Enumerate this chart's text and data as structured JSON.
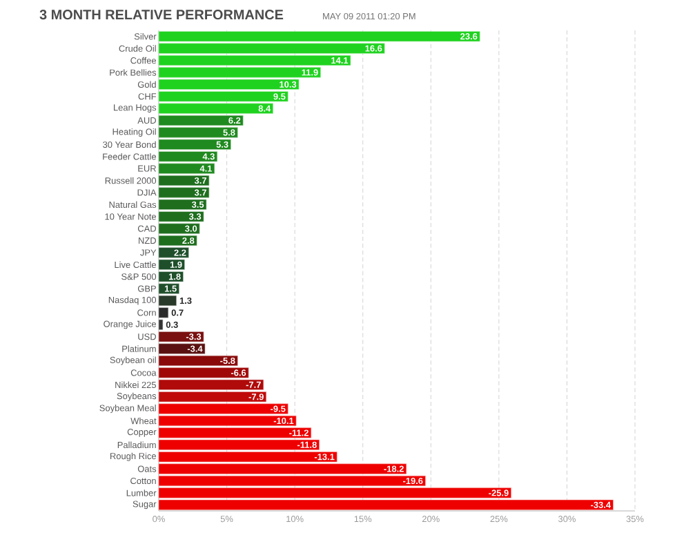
{
  "chart_data": {
    "type": "bar",
    "orientation": "horizontal",
    "title": "3 MONTH RELATIVE PERFORMANCE",
    "subtitle": "MAY 09 2011 01:20 PM",
    "categories": [
      "Silver",
      "Crude Oil",
      "Coffee",
      "Pork Bellies",
      "Gold",
      "CHF",
      "Lean Hogs",
      "AUD",
      "Heating Oil",
      "30 Year Bond",
      "Feeder Cattle",
      "EUR",
      "Russell 2000",
      "DJIA",
      "Natural Gas",
      "10 Year Note",
      "CAD",
      "NZD",
      "JPY",
      "Live Cattle",
      "S&P 500",
      "GBP",
      "Nasdaq 100",
      "Corn",
      "Orange Juice",
      "USD",
      "Platinum",
      "Soybean oil",
      "Cocoa",
      "Nikkei 225",
      "Soybeans",
      "Soybean Meal",
      "Wheat",
      "Copper",
      "Palladium",
      "Rough Rice",
      "Oats",
      "Cotton",
      "Lumber",
      "Sugar"
    ],
    "values": [
      23.6,
      16.6,
      14.1,
      11.9,
      10.3,
      9.5,
      8.4,
      6.2,
      5.8,
      5.3,
      4.3,
      4.1,
      3.7,
      3.7,
      3.5,
      3.3,
      3.0,
      2.8,
      2.2,
      1.9,
      1.8,
      1.5,
      1.3,
      0.7,
      0.3,
      -3.3,
      -3.4,
      -5.8,
      -6.6,
      -7.7,
      -7.9,
      -9.5,
      -10.1,
      -11.2,
      -11.8,
      -13.1,
      -18.2,
      -19.6,
      -25.9,
      -33.4
    ],
    "base": [
      0,
      0,
      0,
      0,
      0,
      0,
      0,
      0,
      0,
      0,
      0,
      0,
      0,
      0,
      0,
      0,
      0,
      0,
      0,
      0,
      0,
      0,
      0,
      0,
      0,
      3.3,
      3.4,
      5.8,
      6.6,
      7.7,
      7.9,
      9.5,
      10.1,
      11.2,
      11.8,
      13.1,
      18.2,
      19.6,
      25.9,
      33.4
    ],
    "value_labels": [
      "23.6",
      "16.6",
      "14.1",
      "11.9",
      "10.3",
      "9.5",
      "8.4",
      "6.2",
      "5.8",
      "5.3",
      "4.3",
      "4.1",
      "3.7",
      "3.7",
      "3.5",
      "3.3",
      "3.0",
      "2.8",
      "2.2",
      "1.9",
      "1.8",
      "1.5",
      "1.3",
      "0.7",
      "0.3",
      "-3.3",
      "-3.4",
      "-5.8",
      "-6.6",
      "-7.7",
      "-7.9",
      "-9.5",
      "-10.1",
      "-11.2",
      "-11.8",
      "-13.1",
      "-18.2",
      "-19.6",
      "-25.9",
      "-33.4"
    ],
    "colors": [
      "#1fd21f",
      "#1fd21f",
      "#1fd21f",
      "#1fd21f",
      "#1fd21f",
      "#1fd21f",
      "#1fd21f",
      "#1f8a1f",
      "#1f8a1f",
      "#1f8a1f",
      "#1f8a1f",
      "#1f8a1f",
      "#1e6e1e",
      "#1e6e1e",
      "#1e6e1e",
      "#1e6e1e",
      "#1e6e1e",
      "#1e6e1e",
      "#1e4f2a",
      "#1e4f2a",
      "#1e4f2a",
      "#1e4f2a",
      "#2a3a2a",
      "#2a2a2a",
      "#333333",
      "#7a1010",
      "#5a1010",
      "#8a0a0a",
      "#a00808",
      "#b00a0a",
      "#c00a0a",
      "#ee0000",
      "#ee0000",
      "#ee0000",
      "#ee0000",
      "#ee0000",
      "#ee0000",
      "#ee0000",
      "#ee0000",
      "#ee0000"
    ],
    "xlim": [
      0,
      35
    ],
    "xticks": [
      {
        "value": 0,
        "label": "0%"
      },
      {
        "value": 5,
        "label": "5%"
      },
      {
        "value": 10,
        "label": "10%"
      },
      {
        "value": 15,
        "label": "15%"
      },
      {
        "value": 20,
        "label": "20%"
      },
      {
        "value": 25,
        "label": "25%"
      },
      {
        "value": 30,
        "label": "30%"
      },
      {
        "value": 35,
        "label": "35%"
      }
    ],
    "grid": "x"
  }
}
